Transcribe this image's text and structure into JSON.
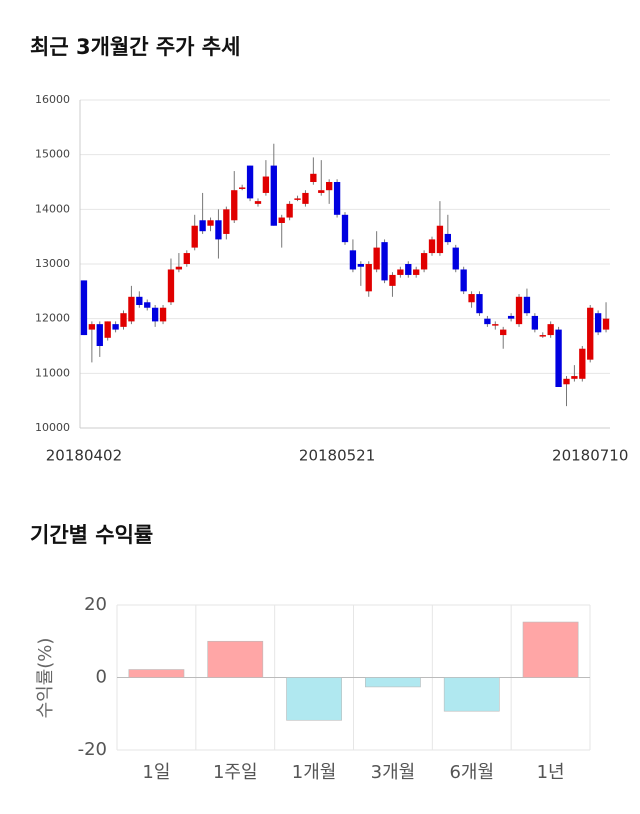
{
  "chart_data": [
    {
      "type": "candlestick",
      "title": "최근 3개월간 주가 추세",
      "categories": [
        "20180402",
        null,
        null,
        null,
        null,
        null,
        null,
        null,
        null,
        null,
        null,
        null,
        null,
        null,
        null,
        null,
        null,
        null,
        null,
        null,
        null,
        null,
        null,
        null,
        null,
        null,
        null,
        null,
        null,
        null,
        null,
        null,
        "20180521",
        null,
        null,
        null,
        null,
        null,
        null,
        null,
        null,
        null,
        null,
        null,
        null,
        null,
        null,
        null,
        null,
        null,
        null,
        null,
        null,
        null,
        null,
        null,
        null,
        null,
        null,
        null,
        null,
        null,
        null,
        null,
        "20180710",
        null,
        null
      ],
      "open": [
        12700,
        11800,
        11900,
        11650,
        11900,
        11850,
        11950,
        12400,
        12300,
        12200,
        11950,
        12300,
        12900,
        13000,
        13300,
        13800,
        13700,
        13800,
        13550,
        13800,
        14400,
        14800,
        14100,
        14300,
        14800,
        13750,
        13850,
        14200,
        14100,
        14500,
        14300,
        14350,
        14500,
        13900,
        13250,
        13000,
        12500,
        12900,
        13400,
        12600,
        12800,
        13000,
        12800,
        12900,
        13200,
        13200,
        13550,
        13300,
        12900,
        12300,
        12450,
        12000,
        11900,
        11700,
        12050,
        11900,
        12400,
        12050,
        11700,
        11700,
        11800,
        10800,
        10900,
        10900,
        11250,
        12100,
        11800
      ],
      "high": [
        12700,
        11950,
        11950,
        11950,
        11950,
        12150,
        12600,
        12500,
        12350,
        12250,
        12250,
        13100,
        13200,
        13250,
        13900,
        14300,
        13850,
        14000,
        14050,
        14700,
        14450,
        14800,
        14200,
        14900,
        15200,
        13900,
        14150,
        14250,
        14350,
        14950,
        14900,
        14550,
        14550,
        13950,
        13450,
        13050,
        13050,
        13600,
        13450,
        12850,
        12950,
        13050,
        12950,
        13250,
        13500,
        14150,
        13900,
        13350,
        12950,
        12500,
        12500,
        12050,
        11950,
        11850,
        12100,
        12450,
        12550,
        12100,
        11750,
        11950,
        11850,
        10950,
        11150,
        11500,
        12250,
        12150,
        12300
      ],
      "low": [
        11700,
        11200,
        11300,
        11600,
        11750,
        11800,
        11900,
        12200,
        12150,
        11850,
        11900,
        12250,
        12850,
        12950,
        13250,
        13550,
        13600,
        13100,
        13450,
        13750,
        14350,
        14150,
        14050,
        14250,
        13700,
        13300,
        13800,
        14150,
        14050,
        14450,
        14250,
        14100,
        13850,
        13350,
        12850,
        12600,
        12400,
        12850,
        12650,
        12400,
        12750,
        12750,
        12750,
        12850,
        13150,
        13150,
        13350,
        12850,
        12450,
        12200,
        12050,
        11850,
        11800,
        11450,
        11950,
        11850,
        12050,
        11750,
        11650,
        11650,
        10750,
        10400,
        10850,
        10850,
        11200,
        11700,
        11750
      ],
      "close": [
        11700,
        11900,
        11500,
        11950,
        11800,
        12100,
        12400,
        12250,
        12200,
        11950,
        12200,
        12900,
        12950,
        13200,
        13700,
        13600,
        13800,
        13450,
        14000,
        14350,
        14400,
        14200,
        14150,
        14600,
        13700,
        13850,
        14100,
        14200,
        14300,
        14650,
        14350,
        14500,
        13900,
        13400,
        12900,
        12950,
        13000,
        13300,
        12700,
        12800,
        12900,
        12800,
        12900,
        13200,
        13450,
        13700,
        13400,
        12900,
        12500,
        12450,
        12100,
        11900,
        11900,
        11800,
        12000,
        12400,
        12100,
        11800,
        11700,
        11900,
        10750,
        10900,
        10950,
        11450,
        12200,
        11750,
        12000
      ],
      "up_color": "#e00000",
      "down_color": "#0000e0",
      "ylim": [
        10000,
        16000
      ],
      "yticks": [
        10000,
        11000,
        12000,
        13000,
        14000,
        15000,
        16000
      ],
      "grid": true
    },
    {
      "type": "bar",
      "title": "기간별 수익률",
      "y_label": "수익률(%)",
      "categories": [
        "1일",
        "1주일",
        "1개월",
        "3개월",
        "6개월",
        "1년"
      ],
      "values": [
        2.2,
        10,
        -11.8,
        -2.6,
        -9.3,
        15.3
      ],
      "colors": [
        "#ffa6a6",
        "#ffa6a6",
        "#b0e8f0",
        "#b0e8f0",
        "#b0e8f0",
        "#ffa6a6"
      ],
      "ylim": [
        -20,
        20
      ],
      "yticks": [
        -20,
        0,
        20
      ],
      "grid": true
    }
  ]
}
